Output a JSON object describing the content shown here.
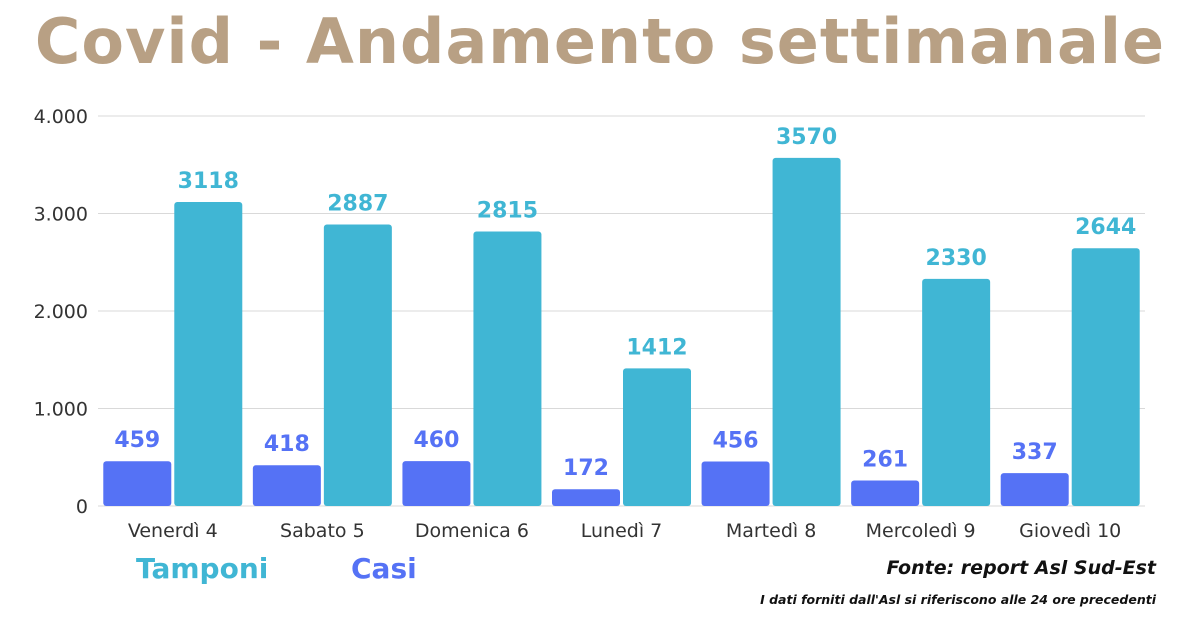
{
  "colors": {
    "title": "#b8a084",
    "casi": "#5572f5",
    "tamponi": "#40b6d4",
    "grid": "#d9d9d9",
    "axis_text": "#333333"
  },
  "chart_data": {
    "type": "bar",
    "title": "Covid - Andamento settimanale",
    "categories": [
      "Venerdì 4",
      "Sabato 5",
      "Domenica 6",
      "Lunedì 7",
      "Martedì 8",
      "Mercoledì 9",
      "Giovedì 10"
    ],
    "series": [
      {
        "name": "Casi",
        "color": "#5572f5",
        "values": [
          459,
          418,
          460,
          172,
          456,
          261,
          337
        ]
      },
      {
        "name": "Tamponi",
        "color": "#40b6d4",
        "values": [
          3118,
          2887,
          2815,
          1412,
          3570,
          2330,
          2644
        ]
      }
    ],
    "ylim": [
      0,
      4000
    ],
    "yticks": [
      0,
      1000,
      2000,
      3000,
      4000
    ],
    "ytick_labels": [
      "0",
      "1.000",
      "2.000",
      "3.000",
      "4.000"
    ],
    "grid": true,
    "legend_position": "bottom-left"
  },
  "legend": {
    "tamponi": "Tamponi",
    "casi": "Casi"
  },
  "source": "Fonte: report Asl Sud-Est",
  "note": "I dati forniti dall'Asl si riferiscono alle 24 ore precedenti"
}
